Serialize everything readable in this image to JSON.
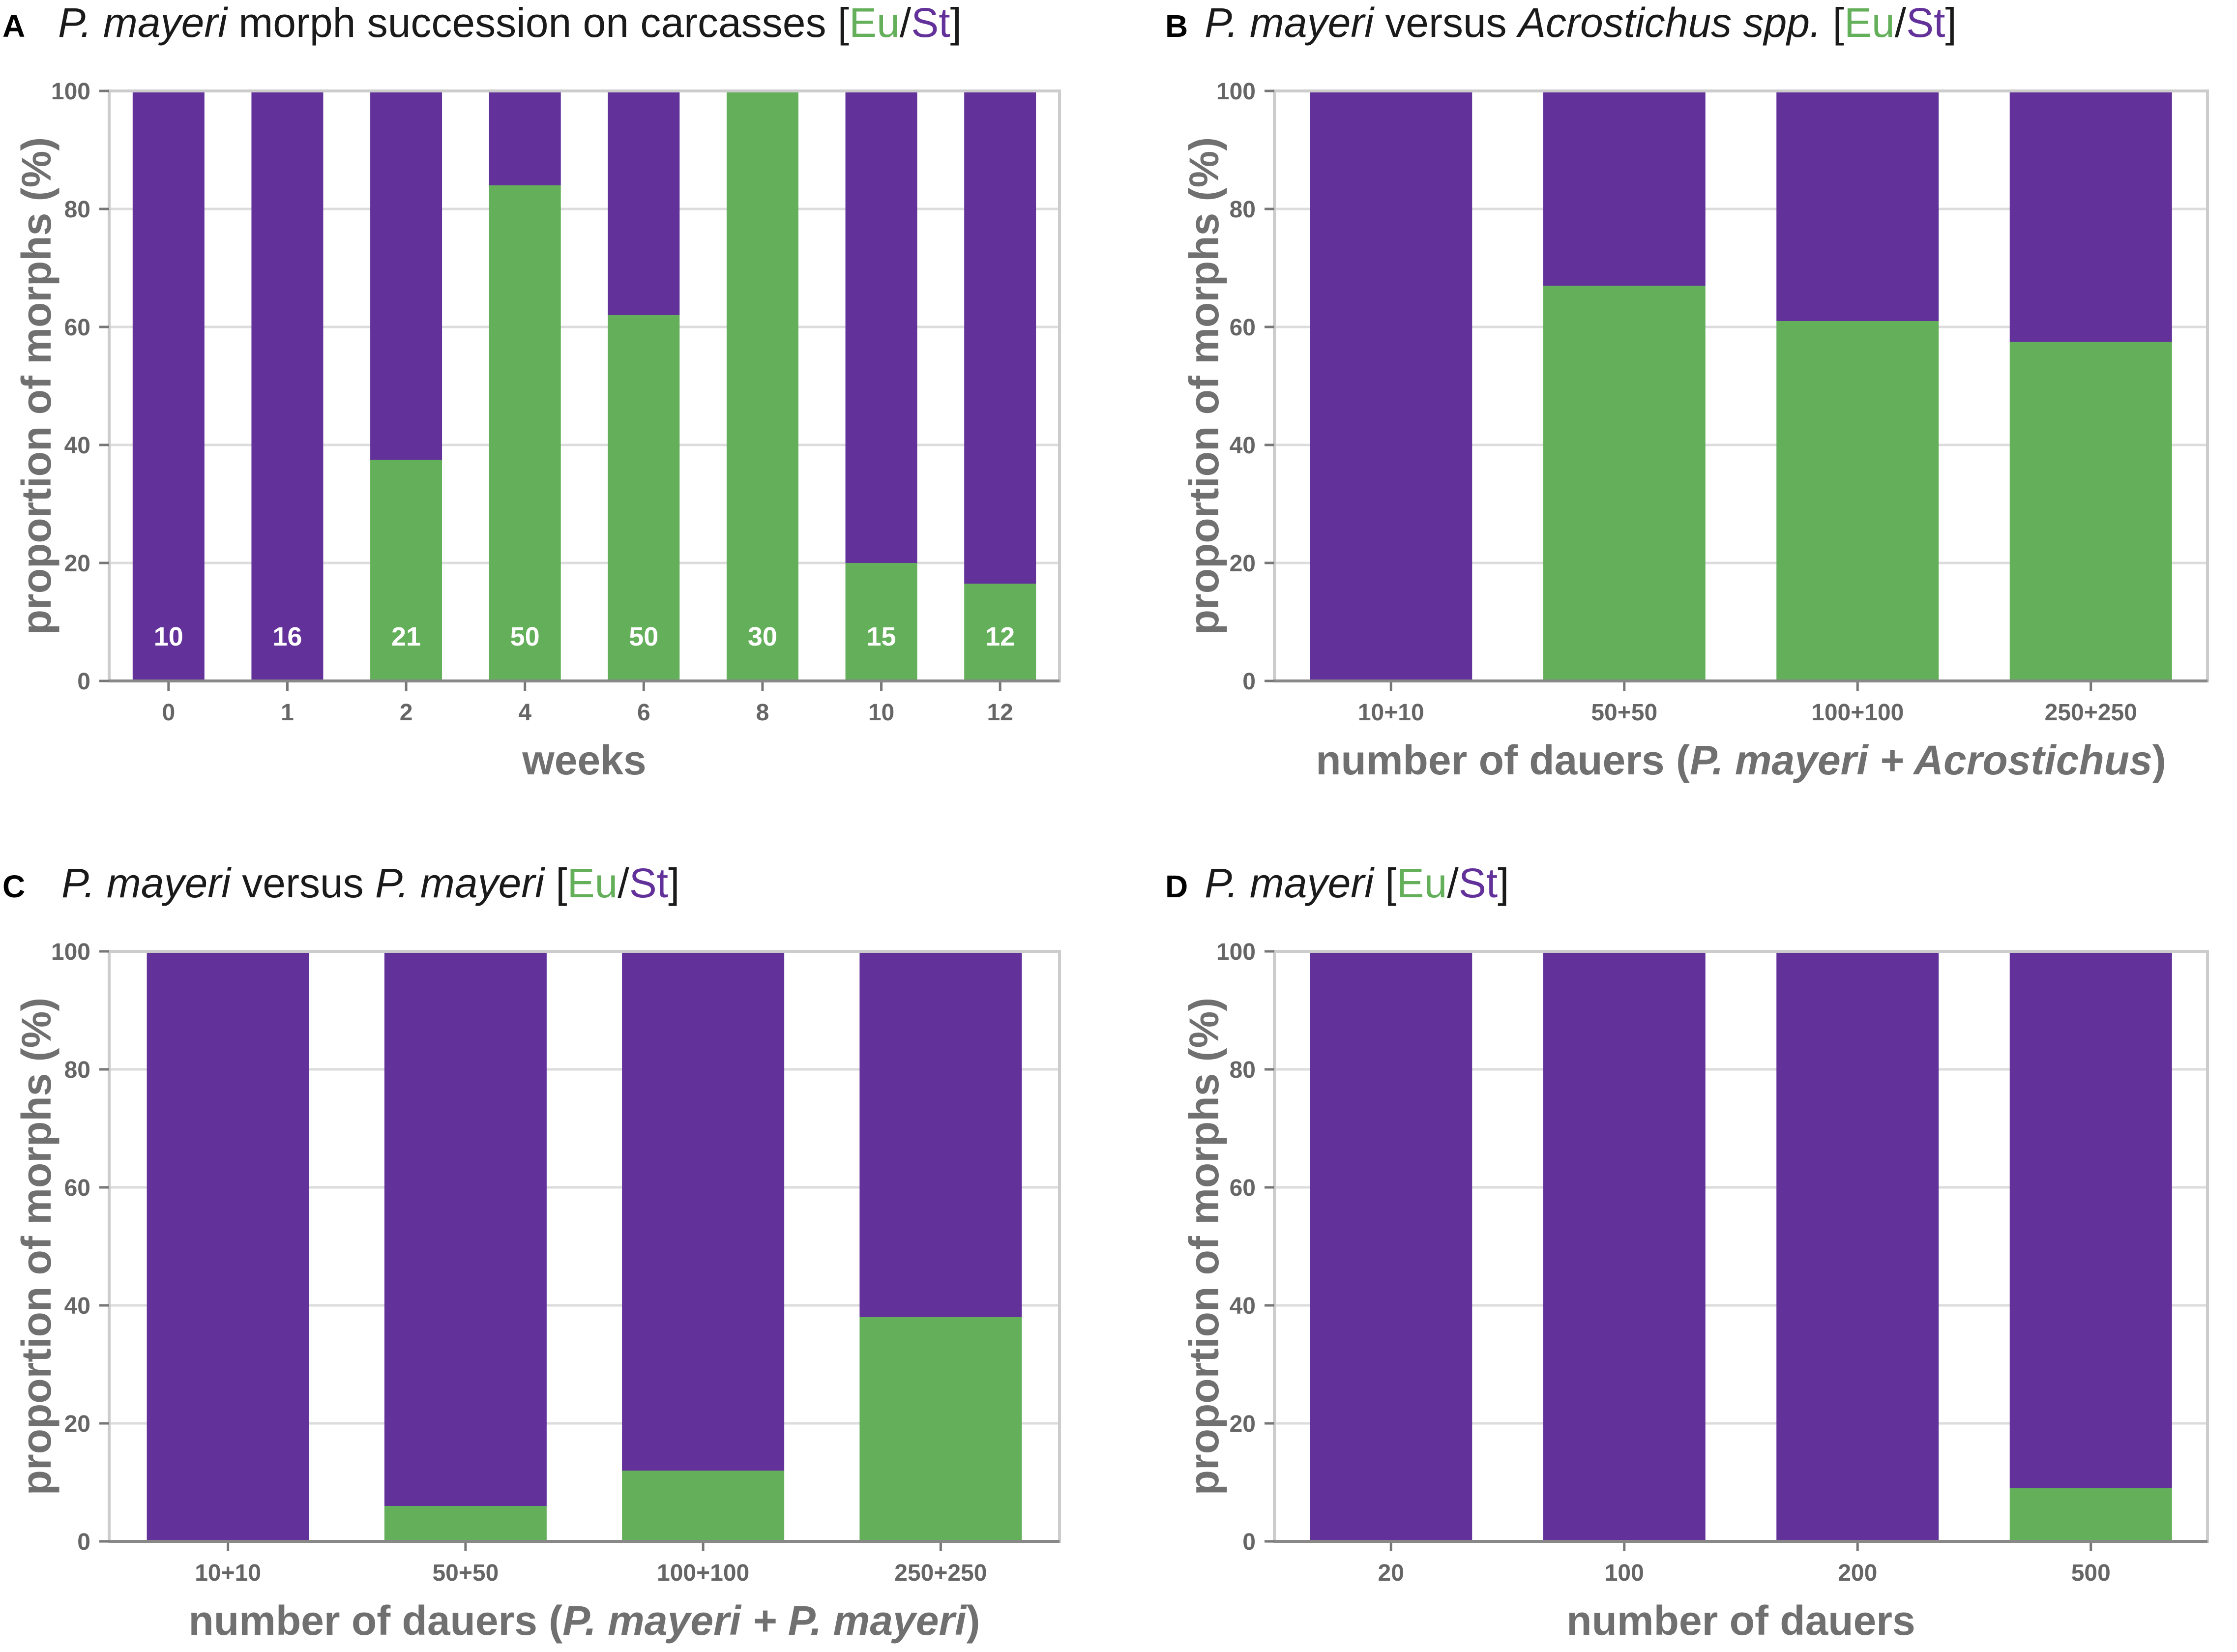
{
  "colors": {
    "eu": "#64af5a",
    "st": "#62319a",
    "grid": "#dcdcdc",
    "frame": "#cccccc",
    "axis_text": "#707070",
    "tick_text": "#666666"
  },
  "legend": {
    "open": "[",
    "eu": "Eu",
    "slash": "/",
    "st": "St",
    "close": "]"
  },
  "chart_data": [
    {
      "panel": "A",
      "type": "bar",
      "stacked": true,
      "title_parts": [
        {
          "text": "P. mayeri",
          "italic": true
        },
        {
          "text": " morph succession on carcasses ",
          "italic": false
        }
      ],
      "categories": [
        "0",
        "1",
        "2",
        "4",
        "6",
        "8",
        "10",
        "12"
      ],
      "series": [
        {
          "name": "Eu",
          "values": [
            0,
            0,
            37.5,
            84,
            62,
            100,
            20,
            16.5
          ]
        },
        {
          "name": "St",
          "values": [
            100,
            100,
            62.5,
            16,
            38,
            0,
            80,
            83.5
          ]
        }
      ],
      "bar_labels": [
        "10",
        "16",
        "21",
        "50",
        "50",
        "30",
        "15",
        "12"
      ],
      "xlabel_parts": [
        {
          "text": "weeks",
          "italic": false
        }
      ],
      "ylabel": "proportion of morphs (%)",
      "ylim": [
        0,
        100
      ],
      "yticks": [
        "0",
        "20",
        "40",
        "60",
        "80",
        "100"
      ],
      "grid": true
    },
    {
      "panel": "B",
      "type": "bar",
      "stacked": true,
      "title_parts": [
        {
          "text": "P. mayeri",
          "italic": true
        },
        {
          "text": " versus ",
          "italic": false
        },
        {
          "text": "Acrostichus spp.",
          "italic": true
        },
        {
          "text": " ",
          "italic": false
        }
      ],
      "categories": [
        "10+10",
        "50+50",
        "100+100",
        "250+250"
      ],
      "series": [
        {
          "name": "Eu",
          "values": [
            0,
            67,
            61,
            57.5
          ]
        },
        {
          "name": "St",
          "values": [
            100,
            33,
            39,
            42.5
          ]
        }
      ],
      "bar_labels": [],
      "xlabel_parts": [
        {
          "text": "number of dauers (",
          "italic": false
        },
        {
          "text": "P. mayeri + Acrostichus",
          "italic": true
        },
        {
          "text": ")",
          "italic": false
        }
      ],
      "ylabel": "proportion of morphs (%)",
      "ylim": [
        0,
        100
      ],
      "yticks": [
        "0",
        "20",
        "40",
        "60",
        "80",
        "100"
      ],
      "grid": true
    },
    {
      "panel": "C",
      "type": "bar",
      "stacked": true,
      "title_parts": [
        {
          "text": "P. mayeri",
          "italic": true
        },
        {
          "text": " versus ",
          "italic": false
        },
        {
          "text": "P. mayeri",
          "italic": true
        },
        {
          "text": " ",
          "italic": false
        }
      ],
      "categories": [
        "10+10",
        "50+50",
        "100+100",
        "250+250"
      ],
      "series": [
        {
          "name": "Eu",
          "values": [
            0,
            6,
            12,
            38
          ]
        },
        {
          "name": "St",
          "values": [
            100,
            94,
            88,
            62
          ]
        }
      ],
      "bar_labels": [],
      "xlabel_parts": [
        {
          "text": "number of dauers (",
          "italic": false
        },
        {
          "text": "P. mayeri + P. mayeri",
          "italic": true
        },
        {
          "text": ")",
          "italic": false
        }
      ],
      "ylabel": "proportion of morphs (%)",
      "ylim": [
        0,
        100
      ],
      "yticks": [
        "0",
        "20",
        "40",
        "60",
        "80",
        "100"
      ],
      "grid": true
    },
    {
      "panel": "D",
      "type": "bar",
      "stacked": true,
      "title_parts": [
        {
          "text": "P. mayeri",
          "italic": true
        },
        {
          "text": " ",
          "italic": false
        }
      ],
      "categories": [
        "20",
        "100",
        "200",
        "500"
      ],
      "series": [
        {
          "name": "Eu",
          "values": [
            0,
            0,
            0,
            9
          ]
        },
        {
          "name": "St",
          "values": [
            100,
            100,
            100,
            91
          ]
        }
      ],
      "bar_labels": [],
      "xlabel_parts": [
        {
          "text": "number of dauers",
          "italic": false
        }
      ],
      "ylabel": "proportion of morphs (%)",
      "ylim": [
        0,
        100
      ],
      "yticks": [
        "0",
        "20",
        "40",
        "60",
        "80",
        "100"
      ],
      "grid": true
    }
  ]
}
